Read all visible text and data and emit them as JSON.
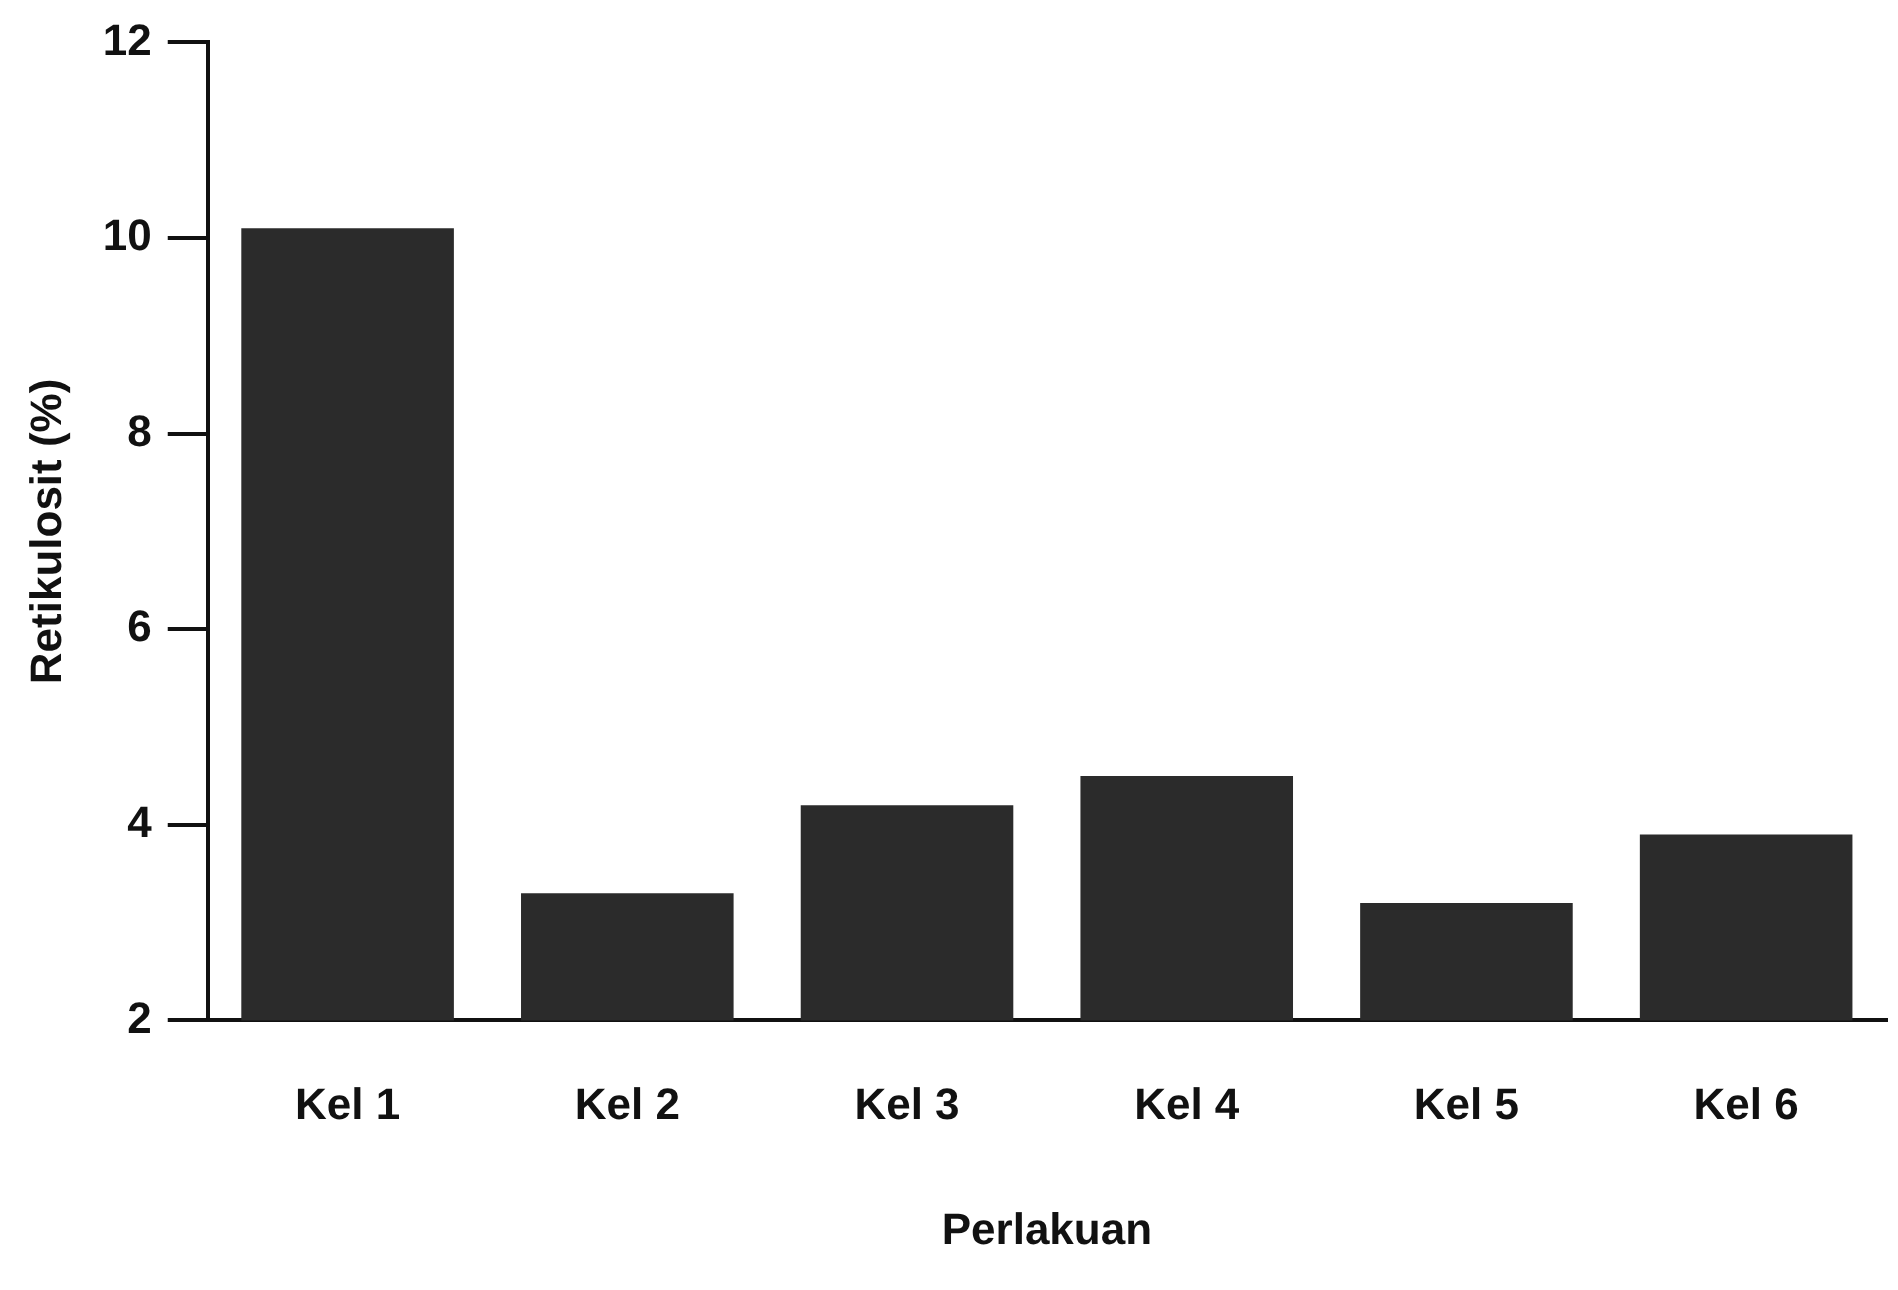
{
  "chart_data": {
    "type": "bar",
    "xlabel": "Perlakuan",
    "ylabel": "Retikulosit (%)",
    "categories": [
      "Kel 1",
      "Kel 2",
      "Kel 3",
      "Kel 4",
      "Kel 5",
      "Kel 6"
    ],
    "values": [
      10.1,
      3.3,
      4.2,
      4.5,
      3.2,
      3.9
    ],
    "color": "#2b2b2b",
    "ylim": [
      2,
      12
    ],
    "yticks": [
      2,
      4,
      6,
      8,
      10,
      12
    ],
    "grid": false,
    "legend": false
  }
}
